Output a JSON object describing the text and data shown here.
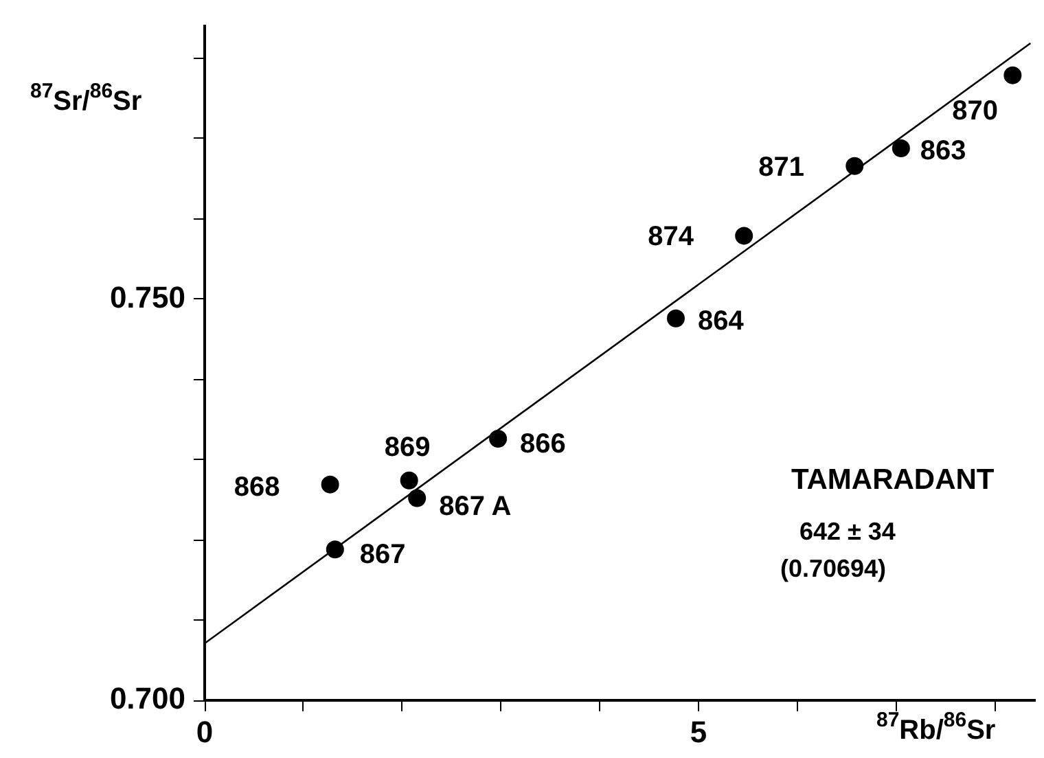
{
  "chart_data": {
    "type": "scatter",
    "xlabel": "$^{87}$Rb/$^{86}$Sr",
    "ylabel": "$^{87}$Sr/$^{86}$Sr",
    "xlim": [
      0,
      8.4
    ],
    "ylim": [
      0.7,
      0.784
    ],
    "xticks": [
      0,
      {
        "value": 1,
        "label": null
      },
      {
        "value": 2,
        "label": null
      },
      {
        "value": 3,
        "label": null
      },
      {
        "value": 4,
        "label": null
      },
      5,
      {
        "value": 6,
        "label": null
      },
      {
        "value": 7,
        "label": null
      },
      {
        "value": 8,
        "label": null
      }
    ],
    "yticks": [
      {
        "value": 0.7,
        "label": "0.700"
      },
      {
        "value": 0.71,
        "label": null
      },
      {
        "value": 0.72,
        "label": null
      },
      {
        "value": 0.73,
        "label": null
      },
      {
        "value": 0.74,
        "label": null
      },
      {
        "value": 0.75,
        "label": "0.750"
      },
      {
        "value": 0.76,
        "label": null
      },
      {
        "value": 0.77,
        "label": null
      },
      {
        "value": 0.78,
        "label": null
      }
    ],
    "grid": false,
    "legend": false,
    "marker": "circle",
    "series": [
      {
        "color": "#000000",
        "x": [
          1.27,
          1.32,
          2.07,
          2.15,
          2.97,
          4.77,
          5.46,
          6.58,
          7.05,
          8.18
        ],
        "values": [
          0.7269,
          0.7188,
          0.7274,
          0.7252,
          0.7326,
          0.7476,
          0.7579,
          0.7666,
          0.7688,
          0.7779
        ]
      },
      {
        "type": "line",
        "color": "#000000",
        "marker": "none",
        "line_style": "solid",
        "x": [
          0,
          8.36
        ],
        "values": [
          0.7071,
          0.7819
        ]
      }
    ],
    "annotations": [
      {
        "text": "868",
        "x": 1.27,
        "y": 0.7269
      },
      {
        "text": "867",
        "x": 1.32,
        "y": 0.7188
      },
      {
        "text": "869",
        "x": 2.07,
        "y": 0.7274
      },
      {
        "text": "867 A",
        "x": 2.15,
        "y": 0.7252
      },
      {
        "text": "866",
        "x": 2.97,
        "y": 0.7326
      },
      {
        "text": "864",
        "x": 4.77,
        "y": 0.7476
      },
      {
        "text": "874",
        "x": 5.46,
        "y": 0.7579
      },
      {
        "text": "871",
        "x": 6.58,
        "y": 0.7666
      },
      {
        "text": "863",
        "x": 7.05,
        "y": 0.7688
      },
      {
        "text": "870",
        "x": 8.18,
        "y": 0.7779
      },
      "TAMARADANT",
      "642 ± 34",
      "(0.70694)"
    ]
  }
}
